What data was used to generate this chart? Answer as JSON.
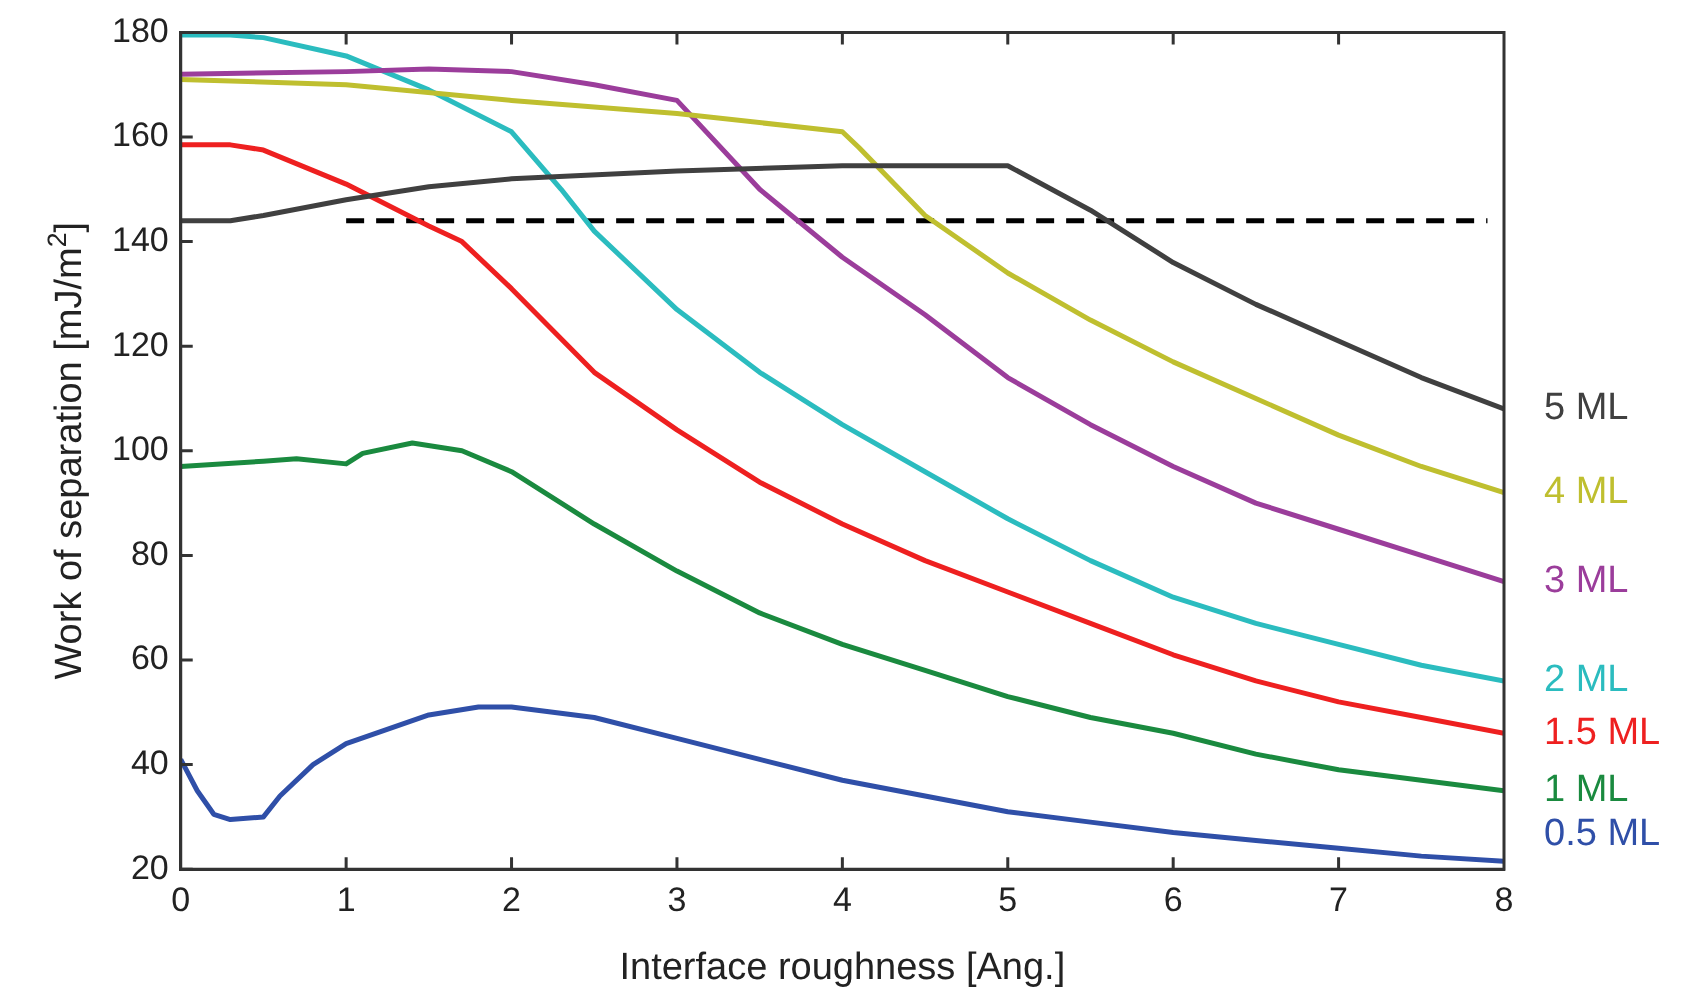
{
  "chart_data": {
    "type": "line",
    "xlabel": "Interface roughness [Ang.]",
    "ylabel": "Work of separation [mJ/m$^{2}$]",
    "xlim": [
      0,
      8
    ],
    "xticks": [
      0,
      1,
      2,
      3,
      4,
      5,
      6,
      7,
      8
    ],
    "ylim": [
      20,
      180
    ],
    "yticks": [
      20,
      40,
      60,
      80,
      100,
      120,
      140,
      160,
      180
    ],
    "grid": false,
    "legend": false,
    "marker": "none",
    "series": [
      {
        "name": "5 ML",
        "color": "#404040",
        "x": [
          0,
          0.3,
          0.5,
          1,
          1.5,
          2,
          3,
          4,
          5,
          5.5,
          6,
          6.5,
          7,
          7.5,
          8
        ],
        "values": [
          144,
          144,
          145,
          148,
          150.5,
          152,
          153.5,
          154.5,
          154.5,
          146,
          136,
          128,
          121,
          114,
          108
        ]
      },
      {
        "name": "4 ML",
        "color": "#bfbf2f",
        "x": [
          0,
          1,
          2,
          3,
          4,
          4.1,
          4.5,
          5,
          5.5,
          6,
          6.5,
          7,
          7.5,
          8
        ],
        "values": [
          171,
          170,
          167,
          164.5,
          161,
          158,
          145,
          134,
          125,
          117,
          110,
          103,
          97,
          92
        ]
      },
      {
        "name": "3 ML",
        "color": "#9b3d9b",
        "x": [
          0,
          1,
          1.5,
          2,
          2.5,
          3,
          3.5,
          4,
          4.5,
          5,
          5.5,
          6,
          6.5,
          7,
          7.5,
          8
        ],
        "values": [
          172,
          172.5,
          173,
          172.5,
          170,
          167,
          150,
          137,
          126,
          114,
          105,
          97,
          90,
          85,
          80,
          75
        ]
      },
      {
        "name": "2 ML",
        "color": "#2bbcbf",
        "x": [
          0,
          0.3,
          0.5,
          1,
          1.5,
          2,
          2.3,
          2.5,
          3,
          3.5,
          4,
          4.5,
          5,
          5.5,
          6,
          6.5,
          7,
          7.5,
          8
        ],
        "values": [
          179.5,
          179.5,
          179,
          175.5,
          169,
          161,
          150,
          142,
          127,
          115,
          105,
          96,
          87,
          79,
          72,
          67,
          63,
          59,
          56
        ]
      },
      {
        "name": "1.5 ML",
        "color": "#ee2020",
        "x": [
          0,
          0.3,
          0.5,
          1,
          1.5,
          1.7,
          2,
          2.5,
          3,
          3.5,
          4,
          4.5,
          5,
          5.5,
          6,
          6.5,
          7,
          7.5,
          8
        ],
        "values": [
          158.5,
          158.5,
          157.5,
          151,
          143,
          140,
          131,
          115,
          104,
          94,
          86,
          79,
          73,
          67,
          61,
          56,
          52,
          49,
          46
        ]
      },
      {
        "name": "1 ML",
        "color": "#1a8a3f",
        "x": [
          0,
          0.5,
          0.7,
          1,
          1.1,
          1.4,
          1.7,
          2,
          2.5,
          3,
          3.5,
          4,
          4.5,
          5,
          5.5,
          6,
          6.5,
          7,
          7.5,
          8
        ],
        "values": [
          97,
          98,
          98.5,
          97.5,
          99.5,
          101.5,
          100,
          96,
          86,
          77,
          69,
          63,
          58,
          53,
          49,
          46,
          42,
          39,
          37,
          35
        ]
      },
      {
        "name": "0.5 ML",
        "color": "#2f4fa8",
        "x": [
          0,
          0.1,
          0.2,
          0.3,
          0.5,
          0.6,
          0.8,
          1,
          1.5,
          1.8,
          2,
          2.5,
          3,
          3.5,
          4,
          4.5,
          5,
          5.5,
          6,
          6.5,
          7,
          7.5,
          8
        ],
        "values": [
          41,
          35,
          30.5,
          29.5,
          30,
          34,
          40,
          44,
          49.5,
          51,
          51,
          49,
          45,
          41,
          37,
          34,
          31,
          29,
          27,
          25.5,
          24,
          22.5,
          21.5
        ]
      },
      {
        "color": "#000000",
        "line_style": "dashed",
        "x": [
          1,
          7.9
        ],
        "values": [
          144,
          144
        ]
      }
    ]
  }
}
